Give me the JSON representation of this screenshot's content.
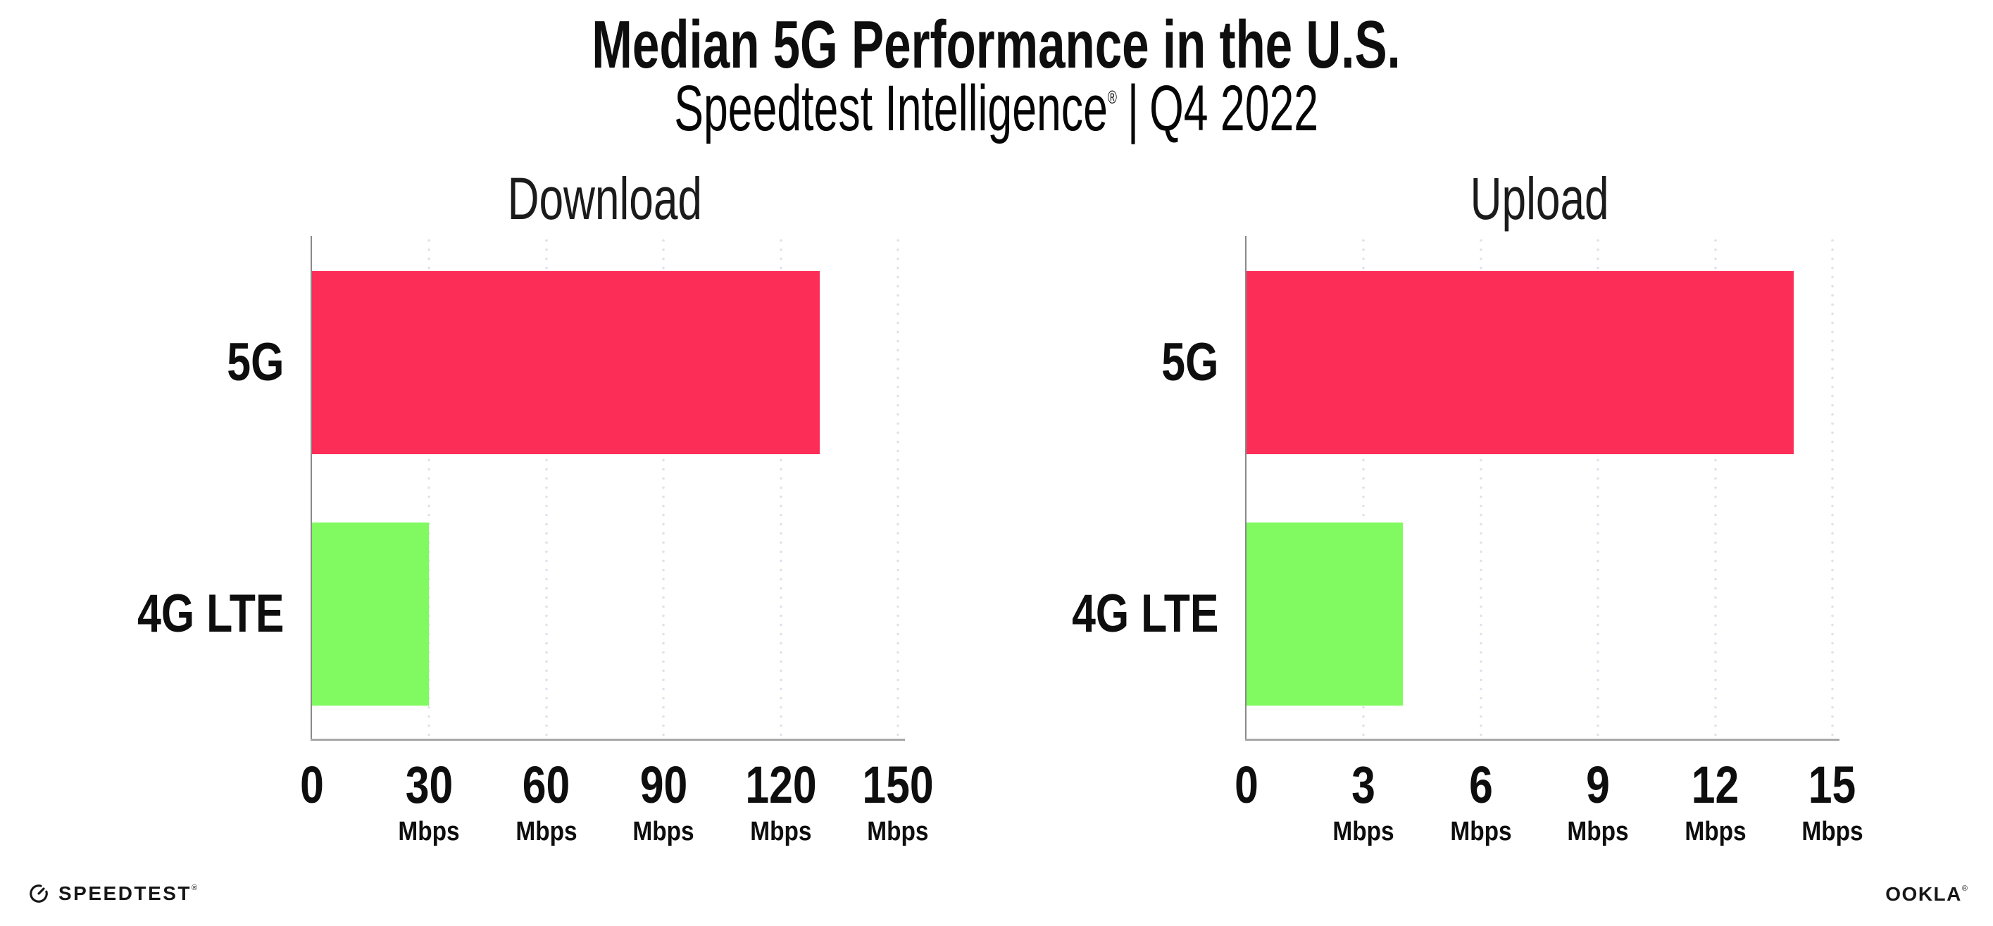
{
  "page": {
    "title": "Median 5G Performance in the U.S.",
    "subtitle": {
      "brand": "Speedtest Intelligence",
      "registered_mark": "®",
      "separator": "|",
      "period": "Q4 2022"
    }
  },
  "chart_data": [
    {
      "type": "bar",
      "orientation": "horizontal",
      "title": "Download",
      "categories": [
        "5G",
        "4G LTE"
      ],
      "values": [
        130,
        30
      ],
      "unit": "Mbps",
      "xlim": [
        0,
        150
      ],
      "xticks": [
        0,
        30,
        60,
        90,
        120,
        150
      ],
      "xtick_unit": "Mbps",
      "bar_colors": [
        "#FC2D57",
        "#80FA60"
      ],
      "grid": "vertical-dotted",
      "legend": "none"
    },
    {
      "type": "bar",
      "orientation": "horizontal",
      "title": "Upload",
      "categories": [
        "5G",
        "4G LTE"
      ],
      "values": [
        14,
        4
      ],
      "unit": "Mbps",
      "xlim": [
        0,
        15
      ],
      "xticks": [
        0,
        3,
        6,
        9,
        12,
        15
      ],
      "xtick_unit": "Mbps",
      "bar_colors": [
        "#FC2D57",
        "#80FA60"
      ],
      "grid": "vertical-dotted",
      "legend": "none"
    }
  ],
  "colors": {
    "bar_5g": "#FC2D57",
    "bar_4g_lte": "#80FA60",
    "gridline": "#E1E1ED",
    "axis_spine": "#8A8A8A",
    "axis_line": "#A8A8A8",
    "text_primary": "#0E0E0E"
  },
  "footer": {
    "speedtest_icon": "speedometer-gauge-icon",
    "speedtest_wordmark": "SPEEDTEST",
    "speedtest_registered_mark": "®",
    "ookla_wordmark": "OOKLA",
    "ookla_registered_mark": "®"
  }
}
